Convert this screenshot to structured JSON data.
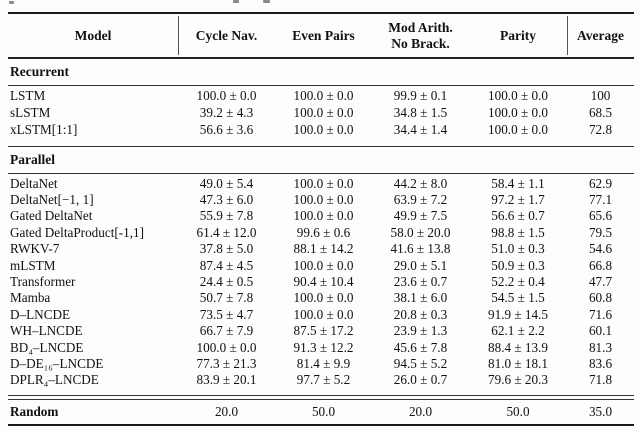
{
  "table": {
    "header": {
      "model": "Model",
      "columns": [
        "Cycle Nav.",
        "Even Pairs",
        "Mod Arith.\nNo Brack.",
        "Parity",
        "Average"
      ]
    },
    "sections": [
      {
        "label": "Recurrent",
        "rows": [
          {
            "model": "LSTM",
            "values": [
              "100.0 ± 0.0",
              "100.0 ± 0.0",
              "99.9 ± 0.1",
              "100.0 ± 0.0",
              "100"
            ]
          },
          {
            "model": "sLSTM",
            "values": [
              "39.2 ± 4.3",
              "100.0 ± 0.0",
              "34.8 ± 1.5",
              "100.0 ± 0.0",
              "68.5"
            ]
          },
          {
            "model": "xLSTM[1:1]",
            "values": [
              "56.6 ± 3.6",
              "100.0 ± 0.0",
              "34.4 ± 1.4",
              "100.0 ± 0.0",
              "72.8"
            ]
          }
        ]
      },
      {
        "label": "Parallel",
        "rows": [
          {
            "model": "DeltaNet",
            "values": [
              "49.0 ± 5.4",
              "100.0 ± 0.0",
              "44.2 ± 8.0",
              "58.4 ± 1.1",
              "62.9"
            ]
          },
          {
            "model": "DeltaNet[−1, 1]",
            "values": [
              "47.3 ± 6.0",
              "100.0 ± 0.0",
              "63.9 ± 7.2",
              "97.2 ± 1.7",
              "77.1"
            ]
          },
          {
            "model": "Gated DeltaNet",
            "values": [
              "55.9 ± 7.8",
              "100.0 ± 0.0",
              "49.9 ± 7.5",
              "56.6 ± 0.7",
              "65.6"
            ]
          },
          {
            "model": "Gated DeltaProduct[-1,1]",
            "values": [
              "61.4 ± 12.0",
              "99.6 ± 0.6",
              "58.0 ± 20.0",
              "98.8 ± 1.5",
              "79.5"
            ]
          },
          {
            "model": "RWKV-7",
            "values": [
              "37.8 ± 5.0",
              "88.1 ± 14.2",
              "41.6 ± 13.8",
              "51.0 ± 0.3",
              "54.6"
            ]
          },
          {
            "model": "mLSTM",
            "values": [
              "87.4 ± 4.5",
              "100.0 ± 0.0",
              "29.0 ± 5.1",
              "50.9 ± 0.3",
              "66.8"
            ]
          },
          {
            "model": "Transformer",
            "values": [
              "24.4 ± 0.5",
              "90.4 ± 10.4",
              "23.6 ± 0.7",
              "52.2 ± 0.4",
              "47.7"
            ]
          },
          {
            "model": "Mamba",
            "values": [
              "50.7 ± 7.8",
              "100.0 ± 0.0",
              "38.1 ± 6.0",
              "54.5 ± 1.5",
              "60.8"
            ]
          },
          {
            "model": "D–LNCDE",
            "values": [
              "73.5 ± 4.7",
              "100.0 ± 0.0",
              "20.8 ± 0.3",
              "91.9 ± 14.5",
              "71.6"
            ]
          },
          {
            "model": "WH–LNCDE",
            "values": [
              "66.7 ± 7.9",
              "87.5 ± 17.2",
              "23.9 ± 1.3",
              "62.1 ± 2.2",
              "60.1"
            ]
          },
          {
            "model": "BD₄–LNCDE",
            "values": [
              "100.0 ± 0.0",
              "91.3 ± 12.2",
              "45.6 ± 7.8",
              "88.4 ± 13.9",
              "81.3"
            ]
          },
          {
            "model": "D–DE₁₆–LNCDE",
            "values": [
              "77.3 ± 21.3",
              "81.4 ± 9.9",
              "94.5 ± 5.2",
              "81.0 ± 18.1",
              "83.6"
            ]
          },
          {
            "model": "DPLR₄–LNCDE",
            "values": [
              "83.9 ± 20.1",
              "97.7 ± 5.2",
              "26.0 ± 0.7",
              "79.6 ± 20.3",
              "71.8"
            ]
          }
        ]
      }
    ],
    "footer": {
      "label": "Random",
      "values": [
        "20.0",
        "50.0",
        "20.0",
        "50.0",
        "35.0"
      ]
    }
  }
}
